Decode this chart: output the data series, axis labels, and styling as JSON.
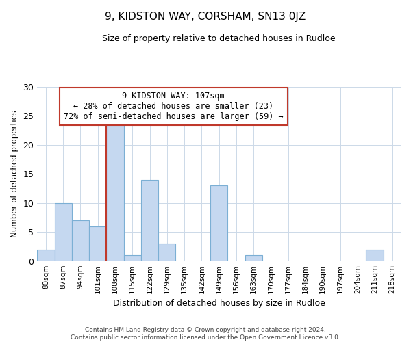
{
  "title": "9, KIDSTON WAY, CORSHAM, SN13 0JZ",
  "subtitle": "Size of property relative to detached houses in Rudloe",
  "xlabel": "Distribution of detached houses by size in Rudloe",
  "ylabel": "Number of detached properties",
  "footer_line1": "Contains HM Land Registry data © Crown copyright and database right 2024.",
  "footer_line2": "Contains public sector information licensed under the Open Government Licence v3.0.",
  "bins": [
    "80sqm",
    "87sqm",
    "94sqm",
    "101sqm",
    "108sqm",
    "115sqm",
    "122sqm",
    "129sqm",
    "135sqm",
    "142sqm",
    "149sqm",
    "156sqm",
    "163sqm",
    "170sqm",
    "177sqm",
    "184sqm",
    "190sqm",
    "197sqm",
    "204sqm",
    "211sqm",
    "218sqm"
  ],
  "values": [
    2,
    10,
    7,
    6,
    24,
    1,
    14,
    3,
    0,
    0,
    13,
    0,
    1,
    0,
    0,
    0,
    0,
    0,
    0,
    2,
    0
  ],
  "bar_color": "#c5d8f0",
  "bar_edge_color": "#7bafd4",
  "highlight_bar_index": 4,
  "vline_color": "#c0392b",
  "annotation_line1": "9 KIDSTON WAY: 107sqm",
  "annotation_line2": "← 28% of detached houses are smaller (23)",
  "annotation_line3": "72% of semi-detached houses are larger (59) →",
  "annotation_box_edge": "#c0392b",
  "ylim": [
    0,
    30
  ],
  "yticks": [
    0,
    5,
    10,
    15,
    20,
    25,
    30
  ],
  "bg_color": "#ffffff",
  "grid_color": "#ccd9e8"
}
